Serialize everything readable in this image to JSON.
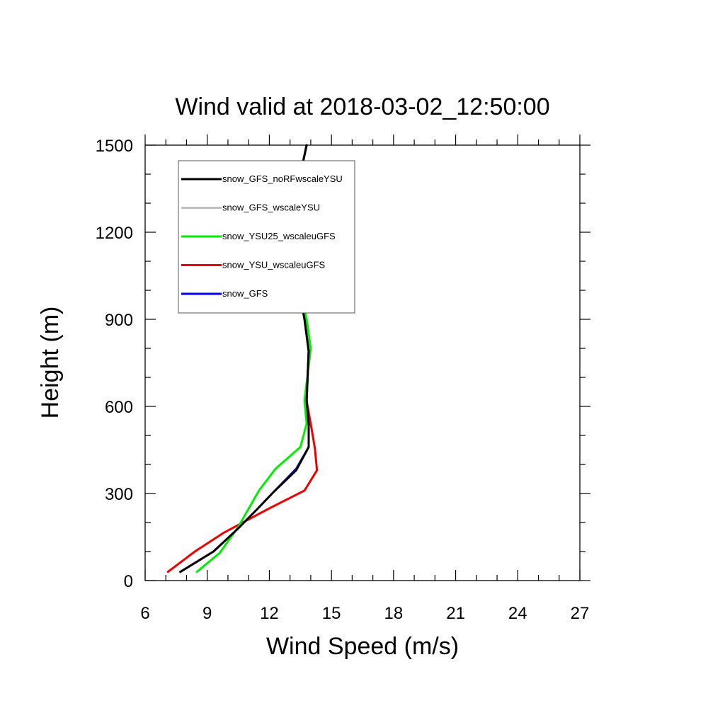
{
  "chart_data": {
    "type": "line",
    "title": "Wind valid at 2018-03-02_12:50:00",
    "xlabel": "Wind Speed (m/s)",
    "ylabel": "Height (m)",
    "xlim": [
      6,
      27
    ],
    "ylim": [
      0,
      1500
    ],
    "xticks": [
      6,
      9,
      12,
      15,
      18,
      21,
      24,
      27
    ],
    "yticks": [
      0,
      300,
      600,
      900,
      1200,
      1500
    ],
    "x_minor_step": 1,
    "y_minor_step": 100,
    "grid": false,
    "legend_position": "top-left",
    "series": [
      {
        "name": "snow_GFS_noRFwscaleYSU",
        "color": "#000000",
        "points": [
          [
            7.7,
            30
          ],
          [
            9.3,
            100
          ],
          [
            10.5,
            180
          ],
          [
            11.4,
            245
          ],
          [
            12.2,
            305
          ],
          [
            13.3,
            380
          ],
          [
            13.9,
            460
          ],
          [
            13.9,
            540
          ],
          [
            13.8,
            620
          ],
          [
            13.9,
            790
          ],
          [
            13.7,
            900
          ],
          [
            13.4,
            1020
          ],
          [
            13.1,
            1120
          ],
          [
            13.0,
            1200
          ],
          [
            13.2,
            1300
          ],
          [
            13.5,
            1400
          ],
          [
            13.8,
            1500
          ]
        ]
      },
      {
        "name": "snow_GFS_wscaleYSU",
        "color": "#bdbdbd",
        "points": [
          [
            7.7,
            30
          ],
          [
            9.3,
            100
          ],
          [
            10.5,
            180
          ],
          [
            11.4,
            245
          ],
          [
            12.2,
            305
          ],
          [
            13.3,
            380
          ],
          [
            13.9,
            460
          ],
          [
            13.9,
            540
          ],
          [
            13.8,
            620
          ],
          [
            13.9,
            790
          ],
          [
            13.7,
            900
          ],
          [
            13.4,
            1020
          ],
          [
            13.1,
            1120
          ],
          [
            13.0,
            1200
          ],
          [
            13.2,
            1300
          ],
          [
            13.5,
            1400
          ],
          [
            13.8,
            1500
          ]
        ]
      },
      {
        "name": "snow_YSU25_wscaleuGFS",
        "color": "#00ee00",
        "points": [
          [
            8.5,
            30
          ],
          [
            9.6,
            95
          ],
          [
            10.5,
            185
          ],
          [
            11.5,
            310
          ],
          [
            12.3,
            385
          ],
          [
            13.5,
            460
          ],
          [
            13.8,
            540
          ],
          [
            13.7,
            620
          ],
          [
            14.0,
            800
          ],
          [
            13.8,
            900
          ],
          [
            13.4,
            1020
          ],
          [
            13.0,
            1120
          ],
          [
            13.0,
            1200
          ],
          [
            13.2,
            1300
          ],
          [
            13.5,
            1400
          ],
          [
            13.8,
            1500
          ]
        ]
      },
      {
        "name": "snow_YSU_wscaleuGFS",
        "color": "#ee0000",
        "points": [
          [
            7.1,
            30
          ],
          [
            8.4,
            100
          ],
          [
            9.8,
            165
          ],
          [
            11.9,
            245
          ],
          [
            13.7,
            310
          ],
          [
            14.3,
            380
          ],
          [
            14.2,
            455
          ],
          [
            14.0,
            540
          ],
          [
            13.8,
            620
          ],
          [
            13.9,
            790
          ],
          [
            13.7,
            900
          ],
          [
            13.4,
            1020
          ],
          [
            13.1,
            1120
          ],
          [
            13.0,
            1200
          ],
          [
            13.2,
            1300
          ],
          [
            13.5,
            1400
          ],
          [
            13.8,
            1500
          ]
        ]
      },
      {
        "name": "snow_GFS",
        "color": "#0000ee",
        "points": [
          [
            7.7,
            30
          ],
          [
            9.3,
            100
          ],
          [
            10.5,
            180
          ],
          [
            11.4,
            245
          ],
          [
            12.2,
            305
          ],
          [
            13.3,
            385
          ],
          [
            13.9,
            460
          ],
          [
            13.9,
            540
          ],
          [
            13.8,
            620
          ],
          [
            13.9,
            790
          ],
          [
            13.7,
            900
          ],
          [
            13.4,
            1020
          ],
          [
            13.1,
            1120
          ],
          [
            13.0,
            1200
          ],
          [
            13.2,
            1300
          ],
          [
            13.5,
            1400
          ],
          [
            13.8,
            1500
          ]
        ]
      }
    ],
    "draw_order": [
      4,
      3,
      2,
      1,
      0
    ]
  }
}
